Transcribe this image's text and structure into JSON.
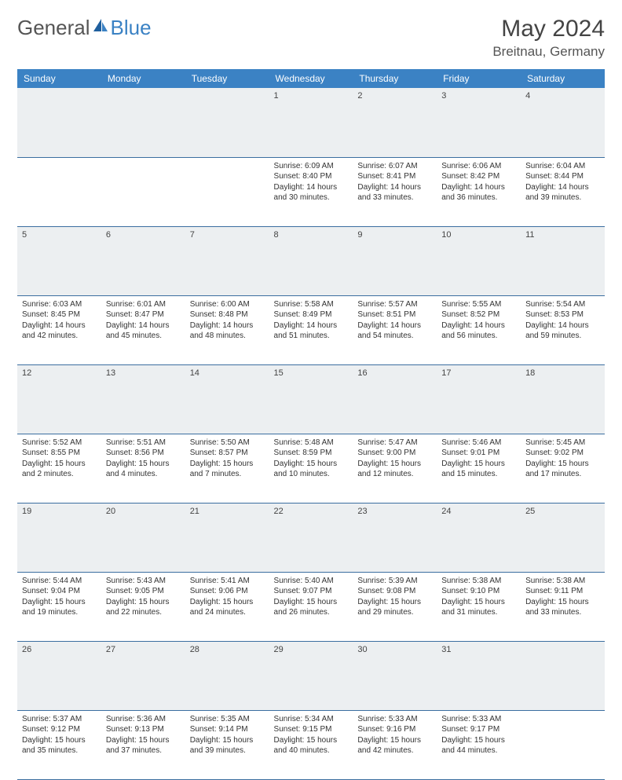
{
  "logo": {
    "left": "General",
    "right": "Blue"
  },
  "title": "May 2024",
  "location": "Breitnau, Germany",
  "colors": {
    "header_bg": "#3b82c4",
    "header_fg": "#ffffff",
    "daynum_bg": "#eceff1",
    "border": "#3b6ea0",
    "text": "#333333",
    "logo_gray": "#555555",
    "logo_blue": "#3b82c4"
  },
  "cols": [
    "Sunday",
    "Monday",
    "Tuesday",
    "Wednesday",
    "Thursday",
    "Friday",
    "Saturday"
  ],
  "weeks": [
    {
      "nums": [
        "",
        "",
        "",
        "1",
        "2",
        "3",
        "4"
      ],
      "cells": [
        null,
        null,
        null,
        {
          "sr": "Sunrise: 6:09 AM",
          "ss": "Sunset: 8:40 PM",
          "dl": "Daylight: 14 hours and 30 minutes."
        },
        {
          "sr": "Sunrise: 6:07 AM",
          "ss": "Sunset: 8:41 PM",
          "dl": "Daylight: 14 hours and 33 minutes."
        },
        {
          "sr": "Sunrise: 6:06 AM",
          "ss": "Sunset: 8:42 PM",
          "dl": "Daylight: 14 hours and 36 minutes."
        },
        {
          "sr": "Sunrise: 6:04 AM",
          "ss": "Sunset: 8:44 PM",
          "dl": "Daylight: 14 hours and 39 minutes."
        }
      ]
    },
    {
      "nums": [
        "5",
        "6",
        "7",
        "8",
        "9",
        "10",
        "11"
      ],
      "cells": [
        {
          "sr": "Sunrise: 6:03 AM",
          "ss": "Sunset: 8:45 PM",
          "dl": "Daylight: 14 hours and 42 minutes."
        },
        {
          "sr": "Sunrise: 6:01 AM",
          "ss": "Sunset: 8:47 PM",
          "dl": "Daylight: 14 hours and 45 minutes."
        },
        {
          "sr": "Sunrise: 6:00 AM",
          "ss": "Sunset: 8:48 PM",
          "dl": "Daylight: 14 hours and 48 minutes."
        },
        {
          "sr": "Sunrise: 5:58 AM",
          "ss": "Sunset: 8:49 PM",
          "dl": "Daylight: 14 hours and 51 minutes."
        },
        {
          "sr": "Sunrise: 5:57 AM",
          "ss": "Sunset: 8:51 PM",
          "dl": "Daylight: 14 hours and 54 minutes."
        },
        {
          "sr": "Sunrise: 5:55 AM",
          "ss": "Sunset: 8:52 PM",
          "dl": "Daylight: 14 hours and 56 minutes."
        },
        {
          "sr": "Sunrise: 5:54 AM",
          "ss": "Sunset: 8:53 PM",
          "dl": "Daylight: 14 hours and 59 minutes."
        }
      ]
    },
    {
      "nums": [
        "12",
        "13",
        "14",
        "15",
        "16",
        "17",
        "18"
      ],
      "cells": [
        {
          "sr": "Sunrise: 5:52 AM",
          "ss": "Sunset: 8:55 PM",
          "dl": "Daylight: 15 hours and 2 minutes."
        },
        {
          "sr": "Sunrise: 5:51 AM",
          "ss": "Sunset: 8:56 PM",
          "dl": "Daylight: 15 hours and 4 minutes."
        },
        {
          "sr": "Sunrise: 5:50 AM",
          "ss": "Sunset: 8:57 PM",
          "dl": "Daylight: 15 hours and 7 minutes."
        },
        {
          "sr": "Sunrise: 5:48 AM",
          "ss": "Sunset: 8:59 PM",
          "dl": "Daylight: 15 hours and 10 minutes."
        },
        {
          "sr": "Sunrise: 5:47 AM",
          "ss": "Sunset: 9:00 PM",
          "dl": "Daylight: 15 hours and 12 minutes."
        },
        {
          "sr": "Sunrise: 5:46 AM",
          "ss": "Sunset: 9:01 PM",
          "dl": "Daylight: 15 hours and 15 minutes."
        },
        {
          "sr": "Sunrise: 5:45 AM",
          "ss": "Sunset: 9:02 PM",
          "dl": "Daylight: 15 hours and 17 minutes."
        }
      ]
    },
    {
      "nums": [
        "19",
        "20",
        "21",
        "22",
        "23",
        "24",
        "25"
      ],
      "cells": [
        {
          "sr": "Sunrise: 5:44 AM",
          "ss": "Sunset: 9:04 PM",
          "dl": "Daylight: 15 hours and 19 minutes."
        },
        {
          "sr": "Sunrise: 5:43 AM",
          "ss": "Sunset: 9:05 PM",
          "dl": "Daylight: 15 hours and 22 minutes."
        },
        {
          "sr": "Sunrise: 5:41 AM",
          "ss": "Sunset: 9:06 PM",
          "dl": "Daylight: 15 hours and 24 minutes."
        },
        {
          "sr": "Sunrise: 5:40 AM",
          "ss": "Sunset: 9:07 PM",
          "dl": "Daylight: 15 hours and 26 minutes."
        },
        {
          "sr": "Sunrise: 5:39 AM",
          "ss": "Sunset: 9:08 PM",
          "dl": "Daylight: 15 hours and 29 minutes."
        },
        {
          "sr": "Sunrise: 5:38 AM",
          "ss": "Sunset: 9:10 PM",
          "dl": "Daylight: 15 hours and 31 minutes."
        },
        {
          "sr": "Sunrise: 5:38 AM",
          "ss": "Sunset: 9:11 PM",
          "dl": "Daylight: 15 hours and 33 minutes."
        }
      ]
    },
    {
      "nums": [
        "26",
        "27",
        "28",
        "29",
        "30",
        "31",
        ""
      ],
      "cells": [
        {
          "sr": "Sunrise: 5:37 AM",
          "ss": "Sunset: 9:12 PM",
          "dl": "Daylight: 15 hours and 35 minutes."
        },
        {
          "sr": "Sunrise: 5:36 AM",
          "ss": "Sunset: 9:13 PM",
          "dl": "Daylight: 15 hours and 37 minutes."
        },
        {
          "sr": "Sunrise: 5:35 AM",
          "ss": "Sunset: 9:14 PM",
          "dl": "Daylight: 15 hours and 39 minutes."
        },
        {
          "sr": "Sunrise: 5:34 AM",
          "ss": "Sunset: 9:15 PM",
          "dl": "Daylight: 15 hours and 40 minutes."
        },
        {
          "sr": "Sunrise: 5:33 AM",
          "ss": "Sunset: 9:16 PM",
          "dl": "Daylight: 15 hours and 42 minutes."
        },
        {
          "sr": "Sunrise: 5:33 AM",
          "ss": "Sunset: 9:17 PM",
          "dl": "Daylight: 15 hours and 44 minutes."
        },
        null
      ]
    }
  ]
}
